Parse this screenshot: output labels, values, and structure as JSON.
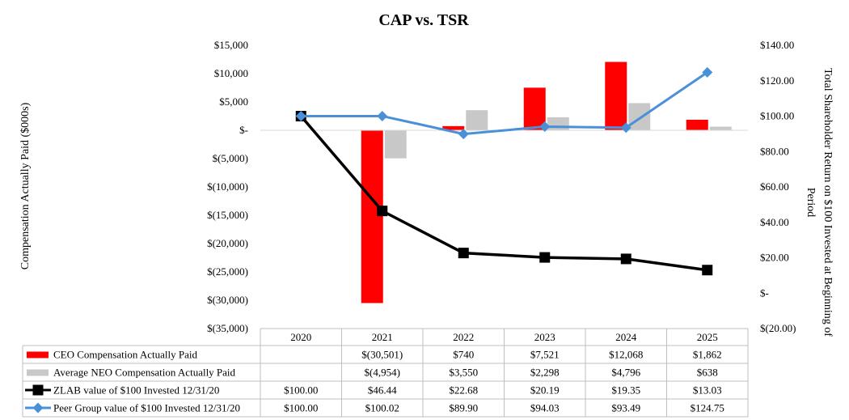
{
  "chart_data": {
    "type": "bar",
    "title": "CAP vs. TSR",
    "ylabel_left": "Compensation Actually Paid ($000s)",
    "ylabel_right_line1": "Total Shareholder Return on $100 Invested at Beginning of",
    "ylabel_right_line2": "Period",
    "categories": [
      "2020",
      "2021",
      "2022",
      "2023",
      "2024",
      "2025"
    ],
    "left_axis": {
      "min": -35000,
      "max": 15000,
      "step": 5000,
      "tick_labels": [
        "$15,000",
        "$10,000",
        "$5,000",
        "$-",
        "$(5,000)",
        "$(10,000)",
        "$(15,000)",
        "$(20,000)",
        "$(25,000)",
        "$(30,000)",
        "$(35,000)"
      ]
    },
    "right_axis": {
      "min": -20,
      "max": 140,
      "step": 20,
      "tick_labels": [
        "$140.00",
        "$120.00",
        "$100.00",
        "$80.00",
        "$60.00",
        "$40.00",
        "$20.00",
        "$-",
        "$(20.00)"
      ]
    },
    "bar_series": [
      {
        "name": "CEO Compensation Actually Paid",
        "color": "#ff0000",
        "values": [
          null,
          -30501,
          740,
          7521,
          12068,
          1862
        ],
        "table": [
          "",
          "$(30,501)",
          "$740",
          "$7,521",
          "$12,068",
          "$1,862"
        ]
      },
      {
        "name": "Average NEO Compensation Actually Paid",
        "color": "#c8c8c8",
        "values": [
          null,
          -4954,
          3550,
          2298,
          4796,
          638
        ],
        "table": [
          "",
          "$(4,954)",
          "$3,550",
          "$2,298",
          "$4,796",
          "$638"
        ]
      }
    ],
    "line_series": [
      {
        "name": "ZLAB value of $100 Invested 12/31/20",
        "color": "#000000",
        "marker": "square",
        "values": [
          100.0,
          46.44,
          22.68,
          20.19,
          19.35,
          13.03
        ],
        "table": [
          "$100.00",
          "$46.44",
          "$22.68",
          "$20.19",
          "$19.35",
          "$13.03"
        ]
      },
      {
        "name": "Peer Group value of $100 Invested 12/31/20",
        "color": "#4a90d9",
        "marker": "diamond",
        "values": [
          100.0,
          100.02,
          89.9,
          94.03,
          93.49,
          124.75
        ],
        "table": [
          "$100.00",
          "$100.02",
          "$89.90",
          "$94.03",
          "$93.49",
          "$124.75"
        ]
      }
    ]
  }
}
